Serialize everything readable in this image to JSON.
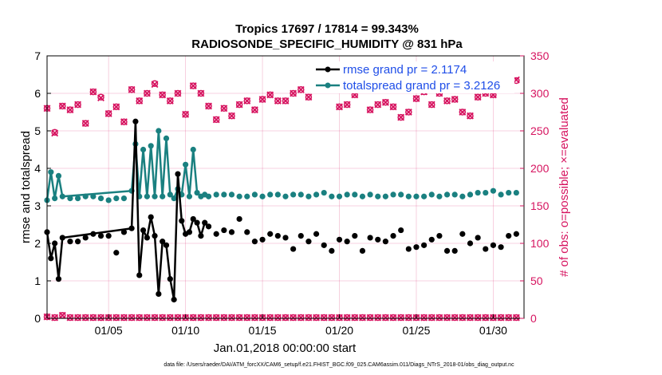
{
  "chart_data": {
    "type": "line",
    "title_line1": "Tropics 17697 / 17814 = 99.343%",
    "title_line2": "RADIOSONDE_SPECIFIC_HUMIDITY @ 831 hPa",
    "xlabel": "Jan.01,2018 00:00:00 start",
    "ylabel_left": "rmse and totalspread",
    "ylabel_right": "# of obs: o=possible; ×=evaluated",
    "footnote": "data file: /Users/raeder/DAI/ATM_forcXX/CAM6_setup/f.e21.FHIST_BGC.f09_025.CAM6assim.011/Diags_NTrS_2018-01/obs_diag_output.nc",
    "xlim": [
      1,
      32
    ],
    "ylim_left": [
      0,
      7
    ],
    "ylim_right": [
      0,
      350
    ],
    "x_ticks": [
      5,
      10,
      15,
      20,
      25,
      30
    ],
    "x_tick_labels": [
      "01/05",
      "01/10",
      "01/15",
      "01/20",
      "01/25",
      "01/30"
    ],
    "y_left_ticks": [
      "0",
      "1",
      "2",
      "3",
      "4",
      "5",
      "6",
      "7"
    ],
    "y_right_ticks": [
      "0",
      "50",
      "100",
      "150",
      "200",
      "250",
      "300",
      "350"
    ],
    "grid": true,
    "colors": {
      "rmse": "#000000",
      "spread": "#1a8080",
      "obs": "#d6135f",
      "legend_text": "#1f4ee8"
    },
    "series": [
      {
        "name": "rmse grand pr = 2.1174",
        "key": "rmse",
        "connected_x": [
          1,
          1.25,
          1.5,
          1.75,
          2,
          6.5,
          6.75,
          7,
          7.25,
          7.5,
          7.75,
          8,
          8.25,
          8.5,
          8.75,
          9,
          9.25,
          9.5,
          9.75,
          10,
          10.25,
          10.5,
          10.75,
          11,
          11.25
        ],
        "connected_y": [
          2.3,
          1.6,
          2.0,
          1.05,
          2.15,
          2.4,
          5.25,
          1.15,
          2.35,
          2.15,
          2.7,
          2.2,
          0.65,
          2.05,
          1.95,
          1.05,
          0.5,
          3.85,
          2.6,
          2.25,
          2.3,
          2.65,
          2.55,
          2.2,
          2.55
        ],
        "isolated_x": [
          2.5,
          3,
          3.5,
          4,
          4.5,
          5,
          5.5,
          6,
          11.5,
          12,
          12.5,
          13,
          13.5,
          14,
          14.5,
          15,
          15.5,
          16,
          16.5,
          17,
          17.5,
          18,
          18.5,
          19,
          19.5,
          20,
          20.5,
          21,
          21.5,
          22,
          22.5,
          23,
          23.5,
          24,
          24.5,
          25,
          25.5,
          26,
          26.5,
          27,
          27.5,
          28,
          28.5,
          29,
          29.5,
          30,
          30.5,
          31,
          31.5
        ],
        "isolated_y": [
          2.05,
          2.05,
          2.15,
          2.25,
          2.2,
          2.2,
          1.75,
          2.3,
          2.45,
          2.25,
          2.35,
          2.3,
          2.65,
          2.3,
          2.05,
          2.1,
          2.25,
          2.2,
          2.15,
          1.85,
          2.2,
          2.05,
          2.25,
          1.95,
          1.8,
          2.1,
          2.05,
          2.2,
          1.8,
          2.15,
          2.1,
          2.05,
          2.2,
          2.35,
          1.85,
          1.9,
          1.95,
          2.1,
          2.2,
          1.8,
          1.8,
          2.25,
          2.0,
          2.15,
          1.85,
          1.95,
          1.9,
          2.2,
          2.25
        ]
      },
      {
        "name": "totalspread grand pr = 3.2126",
        "key": "spread",
        "connected_x": [
          1,
          1.25,
          1.5,
          1.75,
          2,
          6.5,
          6.75,
          7,
          7.25,
          7.5,
          7.75,
          8,
          8.25,
          8.5,
          8.75,
          9,
          9.25,
          9.5,
          9.75,
          10,
          10.25,
          10.5,
          10.75,
          11,
          11.25
        ],
        "connected_y": [
          3.15,
          3.9,
          3.2,
          3.8,
          3.25,
          3.4,
          4.65,
          3.25,
          4.5,
          3.25,
          4.6,
          3.25,
          5.0,
          3.25,
          4.8,
          3.3,
          3.2,
          3.45,
          3.3,
          4.1,
          3.25,
          4.5,
          3.35,
          3.25,
          3.3
        ],
        "isolated_x": [
          2.5,
          3,
          3.5,
          4,
          4.5,
          5,
          5.5,
          6,
          11.5,
          12,
          12.5,
          13,
          13.5,
          14,
          14.5,
          15,
          15.5,
          16,
          16.5,
          17,
          17.5,
          18,
          18.5,
          19,
          19.5,
          20,
          20.5,
          21,
          21.5,
          22,
          22.5,
          23,
          23.5,
          24,
          24.5,
          25,
          25.5,
          26,
          26.5,
          27,
          27.5,
          28,
          28.5,
          29,
          29.5,
          30,
          30.5,
          31,
          31.5
        ],
        "isolated_y": [
          3.2,
          3.2,
          3.25,
          3.25,
          3.2,
          3.15,
          3.2,
          3.2,
          3.25,
          3.3,
          3.3,
          3.3,
          3.25,
          3.25,
          3.3,
          3.25,
          3.3,
          3.3,
          3.25,
          3.3,
          3.3,
          3.25,
          3.3,
          3.35,
          3.25,
          3.25,
          3.3,
          3.3,
          3.25,
          3.3,
          3.25,
          3.25,
          3.3,
          3.3,
          3.25,
          3.25,
          3.25,
          3.3,
          3.25,
          3.3,
          3.3,
          3.25,
          3.3,
          3.35,
          3.35,
          3.4,
          3.3,
          3.35,
          3.35
        ]
      },
      {
        "name": "obs possible",
        "key": "possible",
        "x": [
          1,
          1.5,
          2,
          2.5,
          3,
          3.5,
          4,
          4.5,
          5,
          5.5,
          6,
          6.5,
          7,
          7.5,
          8,
          8.5,
          9,
          9.5,
          10,
          10.5,
          11,
          11.5,
          12,
          12.5,
          13,
          13.5,
          14,
          14.5,
          15,
          15.5,
          16,
          16.5,
          17,
          17.5,
          18,
          18.5,
          19,
          19.5,
          20,
          20.5,
          21,
          21.5,
          22,
          22.5,
          23,
          23.5,
          24,
          24.5,
          25,
          25.5,
          26,
          26.5,
          27,
          27.5,
          28,
          28.5,
          29,
          29.5,
          30,
          30.5,
          31,
          31.5
        ],
        "y": [
          280,
          248,
          283,
          278,
          285,
          260,
          302,
          295,
          273,
          282,
          262,
          305,
          290,
          300,
          313,
          298,
          290,
          300,
          272,
          310,
          300,
          283,
          265,
          280,
          270,
          285,
          290,
          278,
          292,
          298,
          290,
          290,
          300,
          305,
          295,
          310,
          310,
          312,
          282,
          285,
          298,
          312,
          278,
          285,
          288,
          282,
          268,
          275,
          293,
          302,
          285,
          300,
          290,
          292,
          275,
          270,
          295,
          300,
          298,
          305,
          315,
          317
        ]
      },
      {
        "name": "obs evaluated",
        "key": "evaluated",
        "x": [
          1,
          1.5,
          2,
          2.5,
          3,
          3.5,
          4,
          4.5,
          5,
          5.5,
          6,
          6.5,
          7,
          7.5,
          8,
          8.5,
          9,
          9.5,
          10,
          10.5,
          11,
          11.5,
          12,
          12.5,
          13,
          13.5,
          14,
          14.5,
          15,
          15.5,
          16,
          16.5,
          17,
          17.5,
          18,
          18.5,
          19,
          19.5,
          20,
          20.5,
          21,
          21.5,
          22,
          22.5,
          23,
          23.5,
          24,
          24.5,
          25,
          25.5,
          26,
          26.5,
          27,
          27.5,
          28,
          28.5,
          29,
          29.5,
          30,
          30.5,
          31,
          31.5
        ],
        "y": [
          280,
          247,
          283,
          278,
          285,
          260,
          302,
          294,
          273,
          282,
          262,
          305,
          290,
          300,
          312,
          298,
          290,
          300,
          272,
          310,
          300,
          283,
          265,
          280,
          270,
          285,
          290,
          278,
          292,
          298,
          290,
          290,
          300,
          305,
          295,
          311,
          308,
          312,
          282,
          285,
          298,
          312,
          278,
          285,
          288,
          282,
          268,
          275,
          293,
          302,
          285,
          300,
          290,
          292,
          275,
          270,
          295,
          300,
          298,
          305,
          315,
          318
        ],
        "bottom_x": [
          1,
          1.5,
          2,
          2.5,
          3,
          3.5,
          4,
          4.5,
          5,
          5.5,
          6,
          6.5,
          7,
          7.5,
          8,
          8.5,
          9,
          9.5,
          10,
          10.5,
          11,
          11.5,
          12,
          12.5,
          13,
          13.5,
          14,
          14.5,
          15,
          15.5,
          16,
          16.5,
          17,
          17.5,
          18,
          18.5,
          19,
          19.5,
          20,
          20.5,
          21,
          21.5,
          22,
          22.5,
          23,
          23.5,
          24,
          24.5,
          25,
          25.5,
          26,
          26.5,
          27,
          27.5,
          28,
          28.5,
          29,
          29.5,
          30,
          30.5,
          31,
          31.5
        ],
        "bottom_y": [
          2,
          1,
          4,
          1,
          1,
          1,
          1,
          1,
          1,
          1,
          1,
          1,
          1,
          1,
          1,
          1,
          1,
          1,
          1,
          1,
          1,
          1,
          1,
          1,
          1,
          1,
          1,
          1,
          1,
          1,
          1,
          1,
          1,
          1,
          1,
          1,
          1,
          1,
          1,
          1,
          1,
          1,
          1,
          1,
          1,
          1,
          1,
          1,
          1,
          1,
          1,
          1,
          1,
          1,
          1,
          1,
          1,
          1,
          1,
          1,
          1,
          1
        ]
      }
    ]
  }
}
